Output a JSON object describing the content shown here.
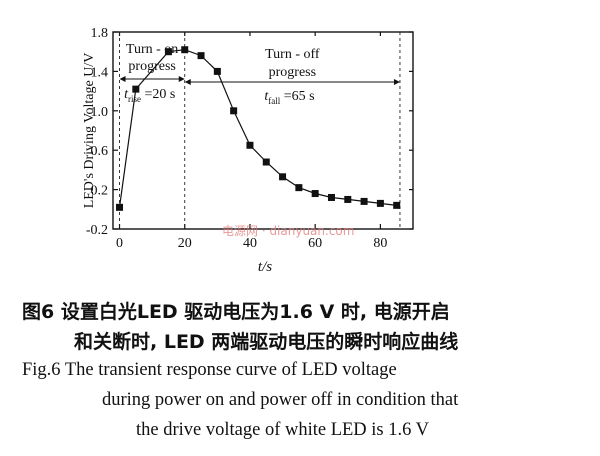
{
  "chart_data": {
    "type": "line",
    "x": [
      0,
      5,
      15,
      20,
      25,
      30,
      35,
      40,
      45,
      50,
      55,
      60,
      65,
      70,
      75,
      80,
      85
    ],
    "series": [
      {
        "values": [
          0.02,
          1.22,
          1.6,
          1.62,
          1.56,
          1.4,
          1.0,
          0.65,
          0.48,
          0.33,
          0.22,
          0.16,
          0.12,
          0.1,
          0.08,
          0.06,
          0.04
        ]
      }
    ],
    "xlabel": "t/s",
    "ylabel": "LED's Driving Voltage U/V",
    "xlim": [
      -2,
      90
    ],
    "ylim": [
      -0.2,
      1.8
    ],
    "xticks": [
      0,
      20,
      40,
      60,
      80
    ],
    "yticks": [
      -0.2,
      0.2,
      0.6,
      1.0,
      1.4,
      1.8
    ],
    "ytick_labels": [
      "-0.2",
      "0.2",
      "0.6",
      "1.0",
      "1.4",
      "1.8"
    ],
    "grid": false,
    "marker": "square",
    "dashed_verticals": [
      0,
      20,
      86
    ],
    "annotations": {
      "turn_on_label": "Turn - on",
      "turn_on_label2": "progress",
      "turn_on_time": "t",
      "turn_on_time_sub": "rise",
      "turn_on_time_value": "=20 s",
      "turn_off_label": "Turn - off",
      "turn_off_label2": "progress",
      "turn_off_time": "t",
      "turn_off_time_sub": "fall",
      "turn_off_time_value": "=65 s"
    }
  },
  "caption": {
    "cn_line1": "图6   设置白光LED 驱动电压为1.6 V 时, 电源开启",
    "cn_line2": "和关断时, LED 两端驱动电压的瞬时响应曲线",
    "en_line1": "Fig.6    The transient response curve of LED voltage",
    "en_line2": "during power on and power off in condition that",
    "en_line3": "the drive voltage of white LED is 1.6 V"
  },
  "watermark": "电源网 · dianyuan.com"
}
